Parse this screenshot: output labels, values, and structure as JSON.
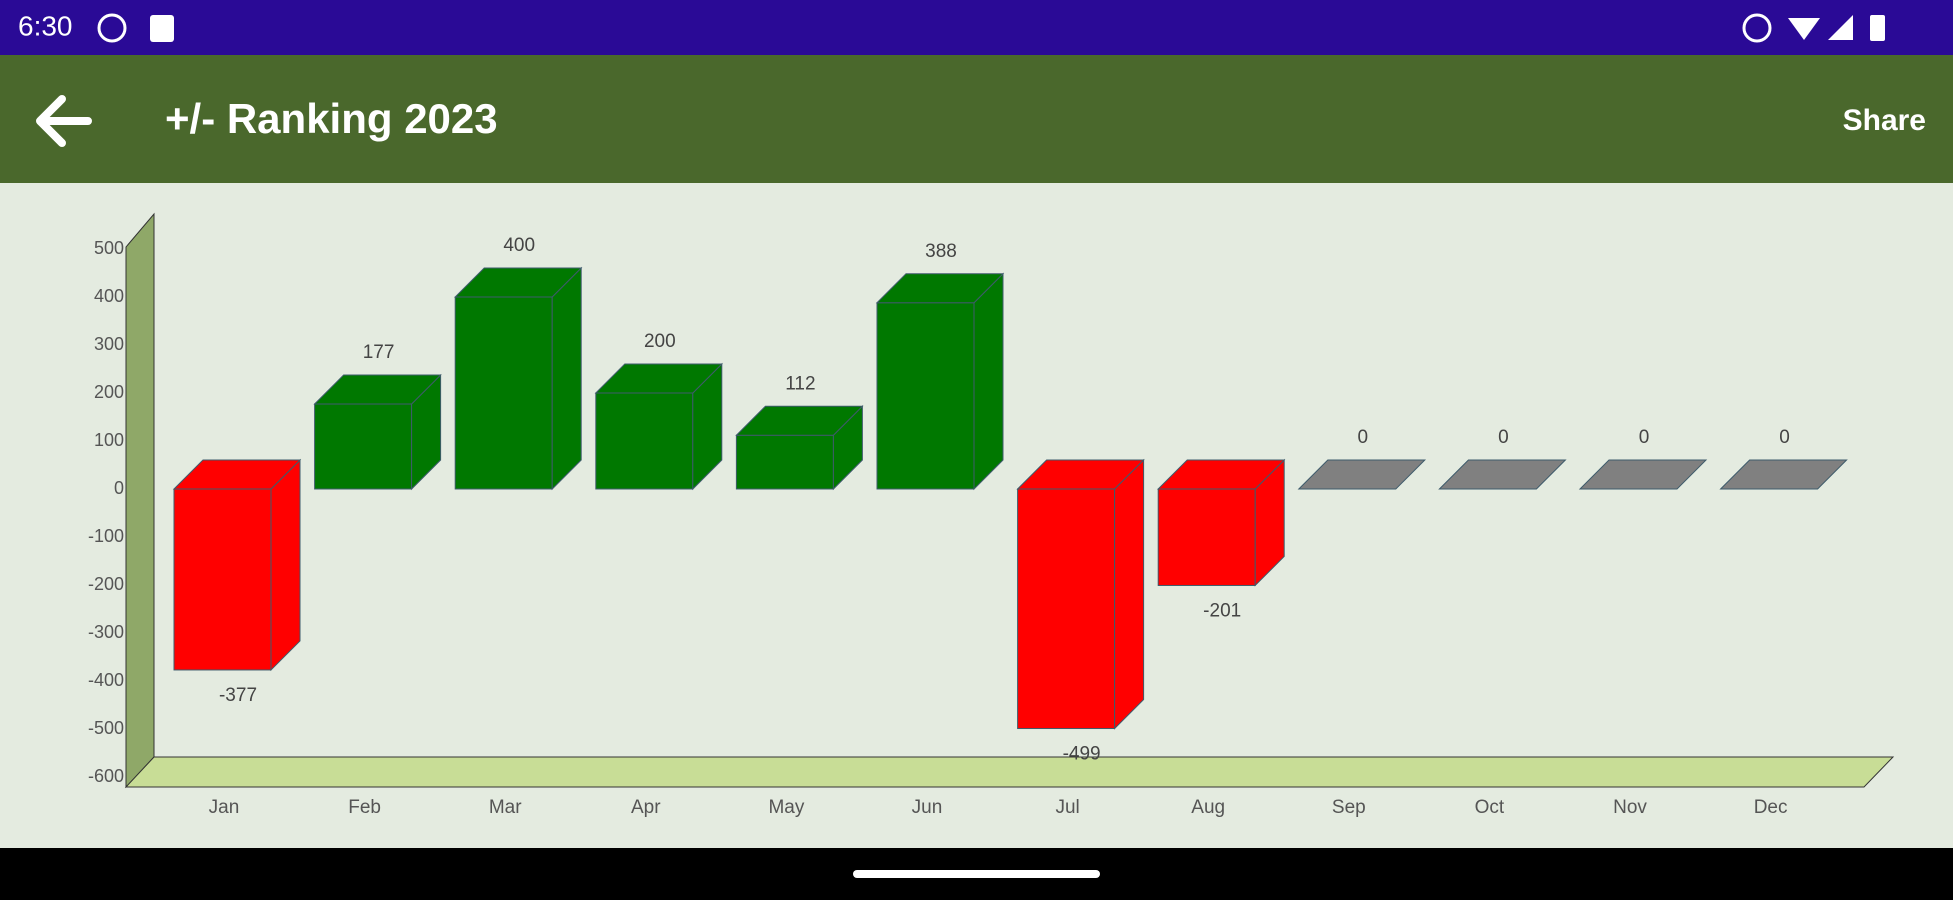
{
  "status_bar": {
    "time": "6:30"
  },
  "app_bar": {
    "title": "+/- Ranking 2023",
    "action": "Share"
  },
  "chart_data": {
    "type": "bar3d",
    "categories": [
      "Jan",
      "Feb",
      "Mar",
      "Apr",
      "May",
      "Jun",
      "Jul",
      "Aug",
      "Sep",
      "Oct",
      "Nov",
      "Dec"
    ],
    "values": [
      -377,
      177,
      400,
      200,
      112,
      388,
      -499,
      -201,
      0,
      0,
      0,
      0
    ],
    "colors": [
      "#ff0000",
      "#007800",
      "#007800",
      "#007800",
      "#007800",
      "#007800",
      "#ff0000",
      "#ff0000",
      "#808080",
      "#808080",
      "#808080",
      "#808080"
    ],
    "ylim": [
      -600,
      500
    ],
    "yticks": [
      -600,
      -500,
      -400,
      -300,
      -200,
      -100,
      0,
      100,
      200,
      300,
      400,
      500
    ],
    "grid": false
  }
}
